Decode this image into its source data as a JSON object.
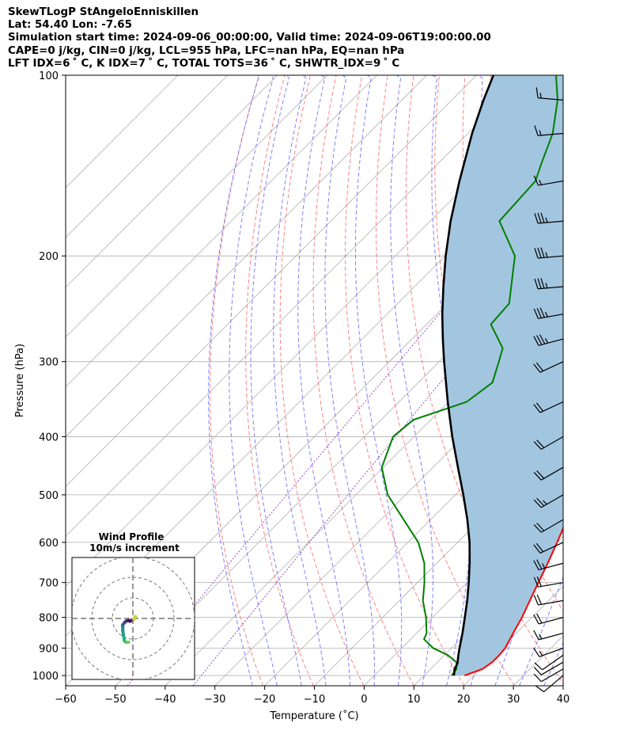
{
  "header": {
    "line1": "SkewTLogP StAngeloEnniskillen",
    "line2": "Lat: 54.40   Lon: -7.65",
    "line3": "Simulation start time: 2024-09-06_00:00:00, Valid time: 2024-09-06T19:00:00.00",
    "line4": "CAPE=0 j/kg, CIN=0 j/kg, LCL=955 hPa, LFC=nan hPa, EQ=nan hPa",
    "line5": "LFT IDX=6 ˚ C, K IDX=7 ˚ C, TOTAL TOTS=36 ˚ C, SHWTR_IDX=9 ˚ C"
  },
  "chart_data": {
    "type": "line",
    "xlabel": "Temperature (˚C)",
    "ylabel": "Pressure (hPa)",
    "xlim": [
      -60,
      40
    ],
    "ylim": [
      1040,
      100
    ],
    "y_scale": "log",
    "skew": "45 degrees",
    "grid": true,
    "x_ticks": [
      -60,
      -50,
      -40,
      -30,
      -20,
      -10,
      0,
      10,
      20,
      30,
      40
    ],
    "y_ticks": [
      1000,
      900,
      800,
      700,
      600,
      500,
      400,
      300,
      200,
      100
    ],
    "colors": {
      "temperature": "#ff0000",
      "dewpoint": "#008000",
      "parcel": "#000000",
      "shading": "#a3c6e0",
      "dry_adiabats": "#ff6b6b",
      "moist_adiabats": "#6b6bff",
      "mixing_ratio": "#9c4dcc",
      "isotherms": "#b0b0b0"
    },
    "series": [
      {
        "pressure": [
          1000,
          975,
          950,
          925,
          900,
          850,
          800,
          750,
          700,
          650,
          600,
          550,
          500,
          450,
          400,
          350,
          300,
          275,
          250,
          225,
          200,
          195,
          175,
          150,
          125,
          110,
          100
        ],
        "values": [
          18.1,
          20.4,
          21.0,
          21.0,
          20.8,
          19.4,
          18.0,
          16.2,
          14.3,
          12.3,
          10.0,
          7.4,
          4.5,
          1.2,
          -2.9,
          -7.5,
          -12.3,
          -15.5,
          -17.6,
          -20.6,
          -24.3,
          -26.0,
          -26.5,
          -30.7,
          -37.8,
          -42.2,
          -46.6
        ]
      },
      {
        "pressure": [
          1000,
          975,
          950,
          925,
          900,
          870,
          850,
          800,
          750,
          700,
          650,
          600,
          550,
          500,
          450,
          400,
          375,
          350,
          325,
          300,
          285,
          260,
          240,
          220,
          200,
          175,
          150,
          140,
          125,
          110,
          100
        ],
        "values": [
          15.5,
          15.2,
          13.8,
          10.7,
          6.3,
          2.7,
          2.0,
          -1.3,
          -5.3,
          -8.6,
          -12.5,
          -17.9,
          -25.4,
          -33.6,
          -40.3,
          -44.2,
          -43.5,
          -36.4,
          -35.1,
          -38.0,
          -39.9,
          -47.1,
          -47.6,
          -51.6,
          -56.0,
          -66.1,
          -66.9,
          -69.3,
          -73.0,
          -78.7,
          -84.0
        ]
      },
      {
        "pressure": [
          1000,
          975,
          955,
          925,
          900,
          850,
          800,
          750,
          700,
          650,
          600,
          550,
          500,
          450,
          400,
          350,
          300,
          275,
          250,
          225,
          200,
          175,
          150,
          125,
          110,
          100
        ],
        "values": [
          16.0,
          14.8,
          14.3,
          12.8,
          11.6,
          9.2,
          6.5,
          3.6,
          0.3,
          -3.4,
          -7.6,
          -12.6,
          -18.4,
          -25.0,
          -32.3,
          -40.2,
          -49.0,
          -53.8,
          -58.9,
          -64.2,
          -69.9,
          -75.9,
          -82.2,
          -89.2,
          -93.6,
          -96.6
        ]
      }
    ],
    "wind_barbs": {
      "pressure": [
        1000,
        975,
        950,
        925,
        900,
        850,
        800,
        750,
        700,
        650,
        600,
        550,
        500,
        450,
        400,
        350,
        300,
        275,
        250,
        225,
        200,
        175,
        150,
        125,
        110
      ],
      "speed_kt": [
        10,
        10,
        10,
        10,
        15,
        15,
        20,
        20,
        20,
        25,
        20,
        20,
        25,
        20,
        20,
        20,
        20,
        35,
        35,
        35,
        35,
        35,
        15,
        15,
        15
      ],
      "direction_deg": [
        230,
        240,
        240,
        235,
        250,
        255,
        255,
        260,
        260,
        255,
        245,
        240,
        240,
        240,
        240,
        245,
        245,
        255,
        260,
        265,
        265,
        265,
        260,
        265,
        275
      ]
    },
    "hodograph": {
      "title": "Wind Profile",
      "subtitle": "10m/s increment",
      "u_ms": [
        -2.0,
        -3.3,
        -4.2,
        -4.3,
        -4.6,
        -4.9,
        -4.9,
        -5.0,
        -4.7,
        -4.0,
        -3.6,
        -3.0,
        -2.2,
        -1.4,
        -0.5,
        0.4,
        1.3
      ],
      "v_ms": [
        -11.5,
        -11.6,
        -10.8,
        -9.8,
        -8.0,
        -6.0,
        -4.0,
        -3.3,
        -2.8,
        -2.0,
        -1.5,
        -1.2,
        -1.0,
        -1.3,
        -0.8,
        -0.4,
        1.0
      ]
    }
  }
}
